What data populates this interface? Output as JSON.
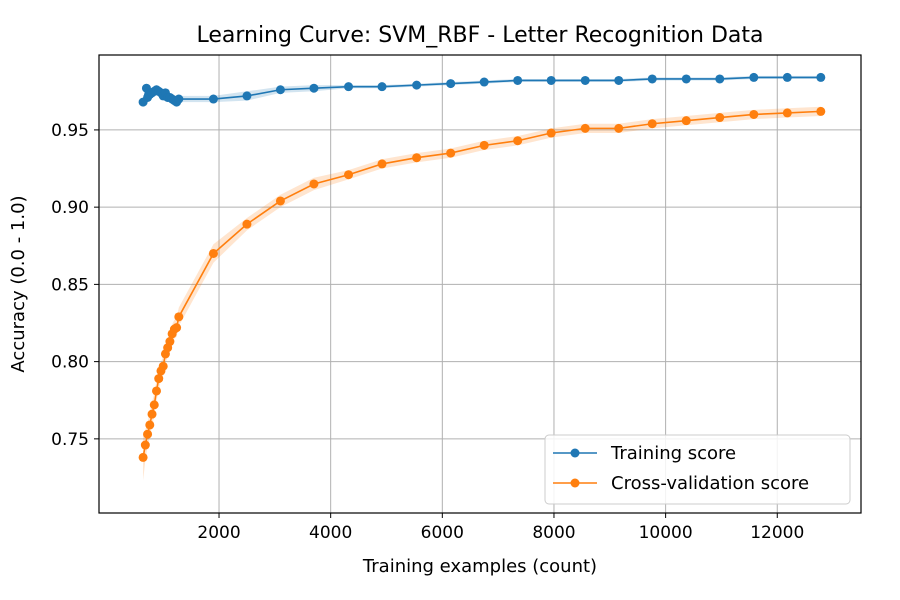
{
  "chart_data": {
    "type": "line",
    "title": "Learning Curve: SVM_RBF - Letter Recognition Data",
    "xlabel": "Training examples (count)",
    "ylabel": "Accuracy (0.0 - 1.0)",
    "xlim": [
      -150,
      13500
    ],
    "ylim": [
      0.702,
      0.9985
    ],
    "xticks": [
      2000,
      4000,
      6000,
      8000,
      10000,
      12000
    ],
    "yticks": [
      0.75,
      0.8,
      0.85,
      0.9,
      0.95
    ],
    "ytick_labels": [
      "0.75",
      "0.80",
      "0.85",
      "0.90",
      "0.95"
    ],
    "grid": true,
    "legend_position": "lower-right",
    "series": [
      {
        "name": "Training score",
        "color": "#1f77b4",
        "x": [
          640,
          700,
          720,
          760,
          800,
          840,
          880,
          920,
          960,
          1000,
          1040,
          1080,
          1120,
          1160,
          1200,
          1240,
          1280,
          1900,
          2500,
          3100,
          3700,
          4320,
          4920,
          5540,
          6150,
          6750,
          7350,
          7950,
          8560,
          9160,
          9760,
          10370,
          10970,
          11580,
          12180,
          12780
        ],
        "y": [
          0.968,
          0.977,
          0.971,
          0.973,
          0.974,
          0.975,
          0.976,
          0.975,
          0.974,
          0.972,
          0.974,
          0.971,
          0.971,
          0.97,
          0.969,
          0.968,
          0.97,
          0.97,
          0.972,
          0.976,
          0.977,
          0.978,
          0.978,
          0.979,
          0.98,
          0.981,
          0.982,
          0.982,
          0.982,
          0.982,
          0.983,
          0.983,
          0.983,
          0.984,
          0.984,
          0.984
        ],
        "band": [
          0.002,
          0.003,
          0.003,
          0.003,
          0.003,
          0.003,
          0.003,
          0.003,
          0.003,
          0.003,
          0.003,
          0.003,
          0.003,
          0.003,
          0.002,
          0.002,
          0.002,
          0.002,
          0.003,
          0.002,
          0.002,
          0.001,
          0.001,
          0.001,
          0.001,
          0.001,
          0.001,
          0.001,
          0.001,
          0.001,
          0.001,
          0.001,
          0.001,
          0.001,
          0.001,
          0.001
        ]
      },
      {
        "name": "Cross-validation score",
        "color": "#ff7f0e",
        "x": [
          640,
          680,
          720,
          760,
          800,
          840,
          880,
          920,
          960,
          1000,
          1040,
          1080,
          1120,
          1160,
          1200,
          1240,
          1280,
          1900,
          2500,
          3100,
          3700,
          4320,
          4920,
          5540,
          6150,
          6750,
          7350,
          7950,
          8560,
          9160,
          9760,
          10370,
          10970,
          11580,
          12180,
          12780
        ],
        "y": [
          0.738,
          0.746,
          0.753,
          0.759,
          0.766,
          0.772,
          0.781,
          0.789,
          0.794,
          0.797,
          0.805,
          0.809,
          0.813,
          0.818,
          0.821,
          0.822,
          0.829,
          0.87,
          0.889,
          0.904,
          0.915,
          0.921,
          0.928,
          0.932,
          0.935,
          0.94,
          0.943,
          0.948,
          0.951,
          0.951,
          0.954,
          0.956,
          0.958,
          0.96,
          0.961,
          0.962
        ],
        "band": [
          0.015,
          0.01,
          0.008,
          0.008,
          0.008,
          0.007,
          0.007,
          0.007,
          0.006,
          0.006,
          0.006,
          0.006,
          0.006,
          0.006,
          0.006,
          0.006,
          0.006,
          0.006,
          0.004,
          0.004,
          0.004,
          0.003,
          0.003,
          0.003,
          0.003,
          0.003,
          0.003,
          0.003,
          0.003,
          0.003,
          0.003,
          0.003,
          0.003,
          0.003,
          0.003,
          0.003
        ]
      }
    ]
  }
}
